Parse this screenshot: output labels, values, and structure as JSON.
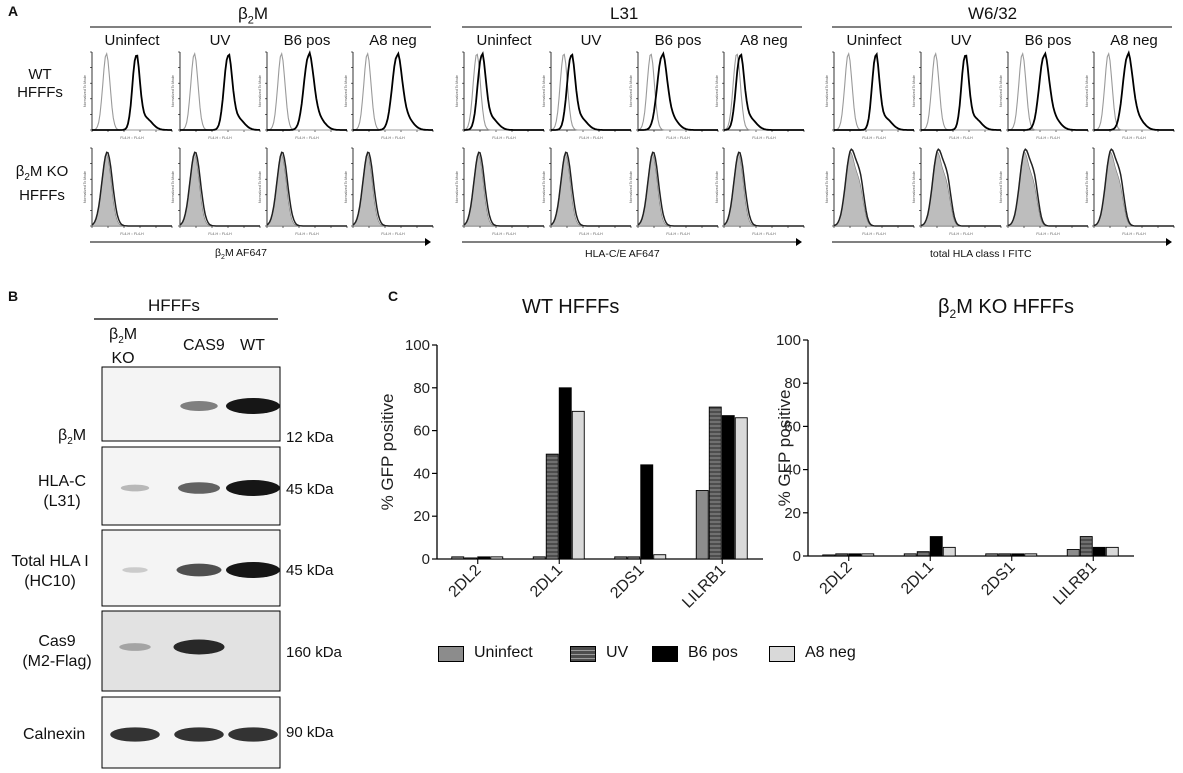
{
  "panels": {
    "a_label": "A",
    "b_label": "B",
    "c_label": "C"
  },
  "panel_a": {
    "groups": [
      {
        "title": "β2M",
        "title_main": "β",
        "title_sub": "2",
        "title_rest": "M",
        "x_axis_label": "β2M AF647",
        "x_axis_main": "β",
        "x_axis_sub": "2",
        "x_axis_rest": "M AF647"
      },
      {
        "title": "L31",
        "x_axis_label": "HLA-C/E AF647"
      },
      {
        "title": "W6/32",
        "x_axis_label": "total HLA class I FITC"
      }
    ],
    "columns": [
      "Uninfect",
      "UV",
      "B6 pos",
      "A8 neg"
    ],
    "rows": [
      {
        "line1": "WT",
        "line2": "HFFFs"
      },
      {
        "line1": "β2M KO",
        "line1_main": "β",
        "line1_sub": "2",
        "line1_rest": "M KO",
        "line2": "HFFFs"
      }
    ],
    "tiny_y_label": "Normalized To Mode",
    "tiny_x_label": "FL4-H :: FL4-H"
  },
  "panel_b": {
    "header": "HFFFs",
    "lanes": [
      {
        "label": "β2M\nKO",
        "main": "β",
        "sub": "2",
        "rest": "M",
        "line2": "KO"
      },
      {
        "label": "CAS9"
      },
      {
        "label": "WT"
      }
    ],
    "blots": [
      {
        "label": "β2M",
        "main": "β",
        "sub": "2",
        "rest": "M",
        "size": "12 kDa",
        "bands": [
          0,
          0.45,
          1.0
        ]
      },
      {
        "label": "HLA-C",
        "line2": "(L31)",
        "size": "45 kDa",
        "bands": [
          0.15,
          0.6,
          1.0
        ]
      },
      {
        "label": "Total HLA I",
        "line2": "(HC10)",
        "size": "45 kDa",
        "bands": [
          0.05,
          0.7,
          1.0
        ]
      },
      {
        "label": "Cas9",
        "line2": "(M2-Flag)",
        "size": "160 kDa",
        "bands": [
          0.25,
          0.9,
          0.0
        ]
      },
      {
        "label": "Calnexin",
        "size": "90 kDa",
        "bands": [
          0.85,
          0.85,
          0.85
        ]
      }
    ]
  },
  "chart_data": [
    {
      "type": "bar",
      "title": "WT HFFFs",
      "ylabel": "% GFP positive",
      "ylim": [
        0,
        100
      ],
      "yticks": [
        "0",
        "20",
        "40",
        "60",
        "80",
        "100"
      ],
      "categories": [
        "2DL2",
        "2DL1",
        "2DS1",
        "LILRB1"
      ],
      "series": [
        {
          "name": "Uninfect",
          "values": [
            1,
            1,
            1,
            32
          ]
        },
        {
          "name": "UV",
          "values": [
            0.5,
            49,
            1,
            71
          ]
        },
        {
          "name": "B6 pos",
          "values": [
            1,
            80,
            44,
            67
          ]
        },
        {
          "name": "A8 neg",
          "values": [
            1,
            69,
            2,
            66
          ]
        }
      ]
    },
    {
      "type": "bar",
      "title": "β2M KO HFFFs",
      "title_main": "β",
      "title_sub": "2",
      "title_rest": "M KO HFFFs",
      "ylabel": "% GFP positive",
      "ylim": [
        0,
        100
      ],
      "yticks": [
        "0",
        "20",
        "40",
        "60",
        "80",
        "100"
      ],
      "categories": [
        "2DL2",
        "2DL1",
        "2DS1",
        "LILRB1"
      ],
      "series": [
        {
          "name": "Uninfect",
          "values": [
            0.5,
            1,
            1,
            3
          ]
        },
        {
          "name": "UV",
          "values": [
            1,
            2,
            1,
            9
          ]
        },
        {
          "name": "B6 pos",
          "values": [
            1,
            9,
            1,
            4
          ]
        },
        {
          "name": "A8 neg",
          "values": [
            1,
            4,
            1,
            4
          ]
        }
      ]
    }
  ],
  "legend": [
    "Uninfect",
    "UV",
    "B6 pos",
    "A8 neg"
  ],
  "colors": {
    "uninfect": "#8c8c8c",
    "uv": "#4d4d4d",
    "b6pos": "#000000",
    "a8neg": "#d9d9d9",
    "shade": "#bdbdbd"
  }
}
